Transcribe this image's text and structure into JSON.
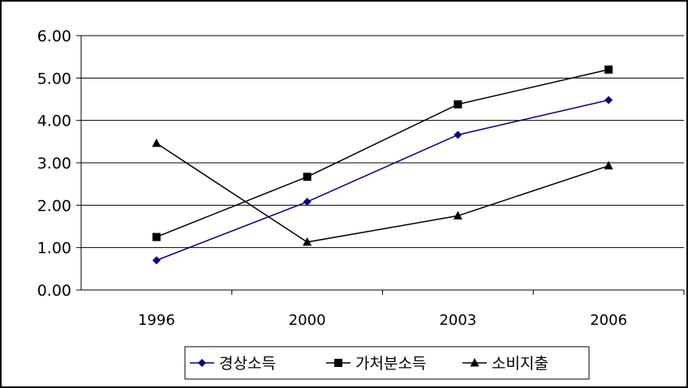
{
  "chart_data": {
    "type": "line",
    "categories": [
      "1996",
      "2000",
      "2003",
      "2006"
    ],
    "ylim": [
      0,
      6
    ],
    "yticks": [
      "0.00",
      "1.00",
      "2.00",
      "3.00",
      "4.00",
      "5.00",
      "6.00"
    ],
    "grid": true,
    "legend_position": "bottom",
    "series": [
      {
        "name": "경상소득",
        "values": [
          0.7,
          2.08,
          3.66,
          4.48
        ],
        "color": "#000080",
        "marker": "diamond"
      },
      {
        "name": "가처분소득",
        "values": [
          1.25,
          2.67,
          4.38,
          5.2
        ],
        "color": "#000000",
        "marker": "square"
      },
      {
        "name": "소비지출",
        "values": [
          3.46,
          1.13,
          1.75,
          2.93
        ],
        "color": "#000000",
        "marker": "triangle"
      }
    ]
  }
}
